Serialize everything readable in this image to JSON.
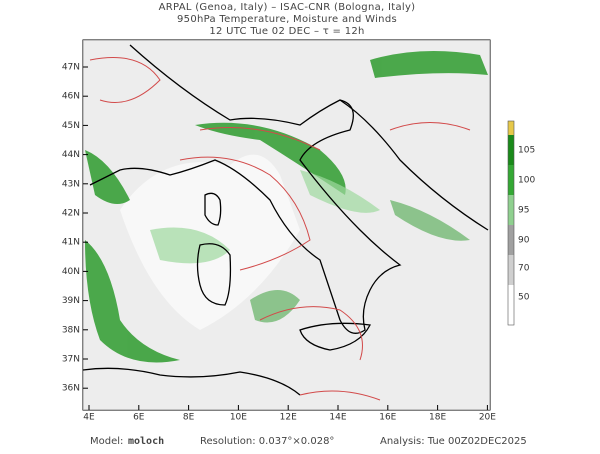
{
  "header": {
    "line1": "ARPAL (Genoa, Italy)  –  ISAC-CNR (Bologna, Italy)",
    "line2": "950hPa Temperature, Moisture and Winds",
    "line3": "12 UTC Tue 02 DEC  –  τ = 12h"
  },
  "map": {
    "lon_labels": [
      "4E",
      "6E",
      "8E",
      "10E",
      "12E",
      "14E",
      "16E",
      "18E",
      "20E"
    ],
    "lat_labels": [
      "47N",
      "46N",
      "45N",
      "44N",
      "43N",
      "42N",
      "41N",
      "40N",
      "39N",
      "38N",
      "37N",
      "36N"
    ]
  },
  "colorbar": {
    "labels": [
      "105",
      "100",
      "95",
      "90",
      "70",
      "50"
    ]
  },
  "footer": {
    "model_label": "Model:",
    "model": "moloch",
    "resolution": "Resolution: 0.037°×0.028°",
    "analysis": "Analysis: Tue 00Z02DEC2025"
  }
}
